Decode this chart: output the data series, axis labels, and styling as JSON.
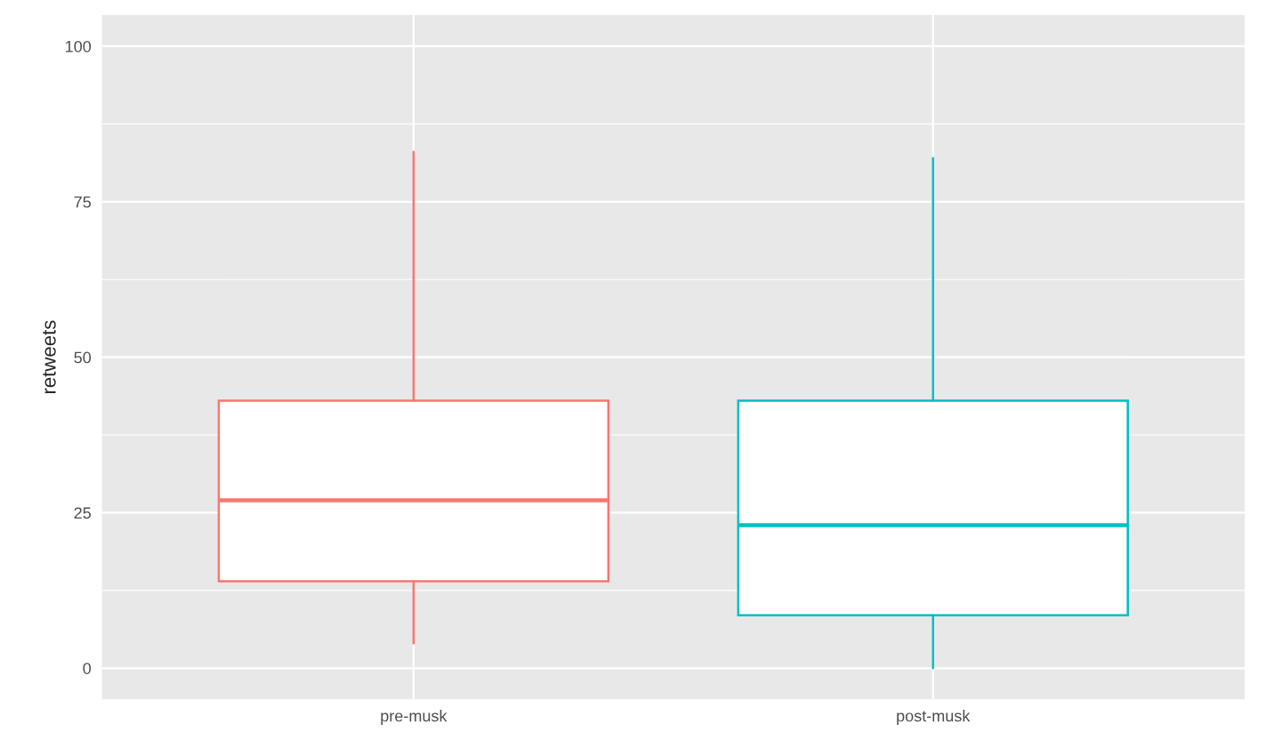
{
  "chart_data": {
    "type": "box",
    "ylabel": "retweets",
    "categories": [
      "pre-musk",
      "post-musk"
    ],
    "colors": [
      "#f8766d",
      "#00bfc4"
    ],
    "boxes": [
      {
        "low": 4,
        "q1": 14,
        "median": 27,
        "q3": 43,
        "high": 83
      },
      {
        "low": 0,
        "q1": 8.5,
        "median": 23,
        "q3": 43,
        "high": 82
      }
    ],
    "ylim": [
      -5,
      105
    ],
    "yticks": [
      0,
      25,
      50,
      75,
      100
    ],
    "grid": true
  }
}
